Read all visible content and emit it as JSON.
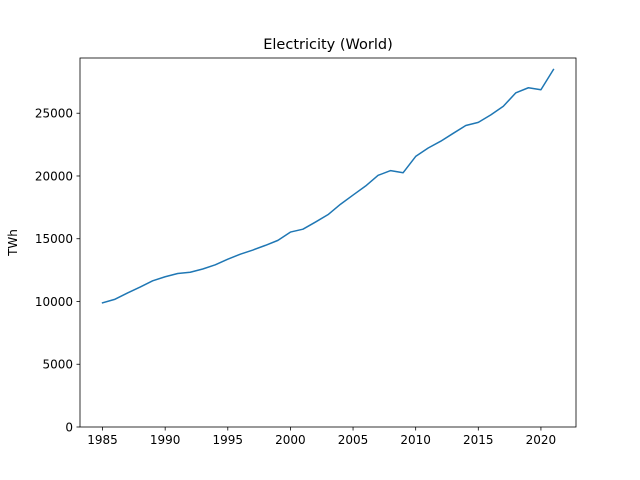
{
  "chart_data": {
    "type": "line",
    "title": "Electricity (World)",
    "xlabel": "",
    "ylabel": "TWh",
    "xlim": [
      1983.2,
      2022.8
    ],
    "ylim": [
      0,
      29400
    ],
    "xticks": [
      1985,
      1990,
      1995,
      2000,
      2005,
      2010,
      2015,
      2020
    ],
    "yticks": [
      0,
      5000,
      10000,
      15000,
      20000,
      25000
    ],
    "grid": false,
    "legend": "none",
    "colors": {
      "line": "#1f77b4",
      "axes": "#000000",
      "background": "#ffffff"
    },
    "series": [
      {
        "x": [
          1985,
          1986,
          1987,
          1988,
          1989,
          1990,
          1991,
          1992,
          1993,
          1994,
          1995,
          1996,
          1997,
          1998,
          1999,
          2000,
          2001,
          2002,
          2003,
          2004,
          2005,
          2006,
          2007,
          2008,
          2009,
          2010,
          2011,
          2012,
          2013,
          2014,
          2015,
          2016,
          2017,
          2018,
          2019,
          2020,
          2021
        ],
        "values": [
          9890,
          10180,
          10680,
          11150,
          11650,
          11970,
          12230,
          12330,
          12590,
          12920,
          13370,
          13770,
          14100,
          14470,
          14870,
          15530,
          15760,
          16330,
          16920,
          17750,
          18480,
          19200,
          20050,
          20430,
          20260,
          21560,
          22230,
          22770,
          23400,
          24020,
          24270,
          24870,
          25560,
          26630,
          27030,
          26870,
          28480
        ]
      }
    ]
  }
}
